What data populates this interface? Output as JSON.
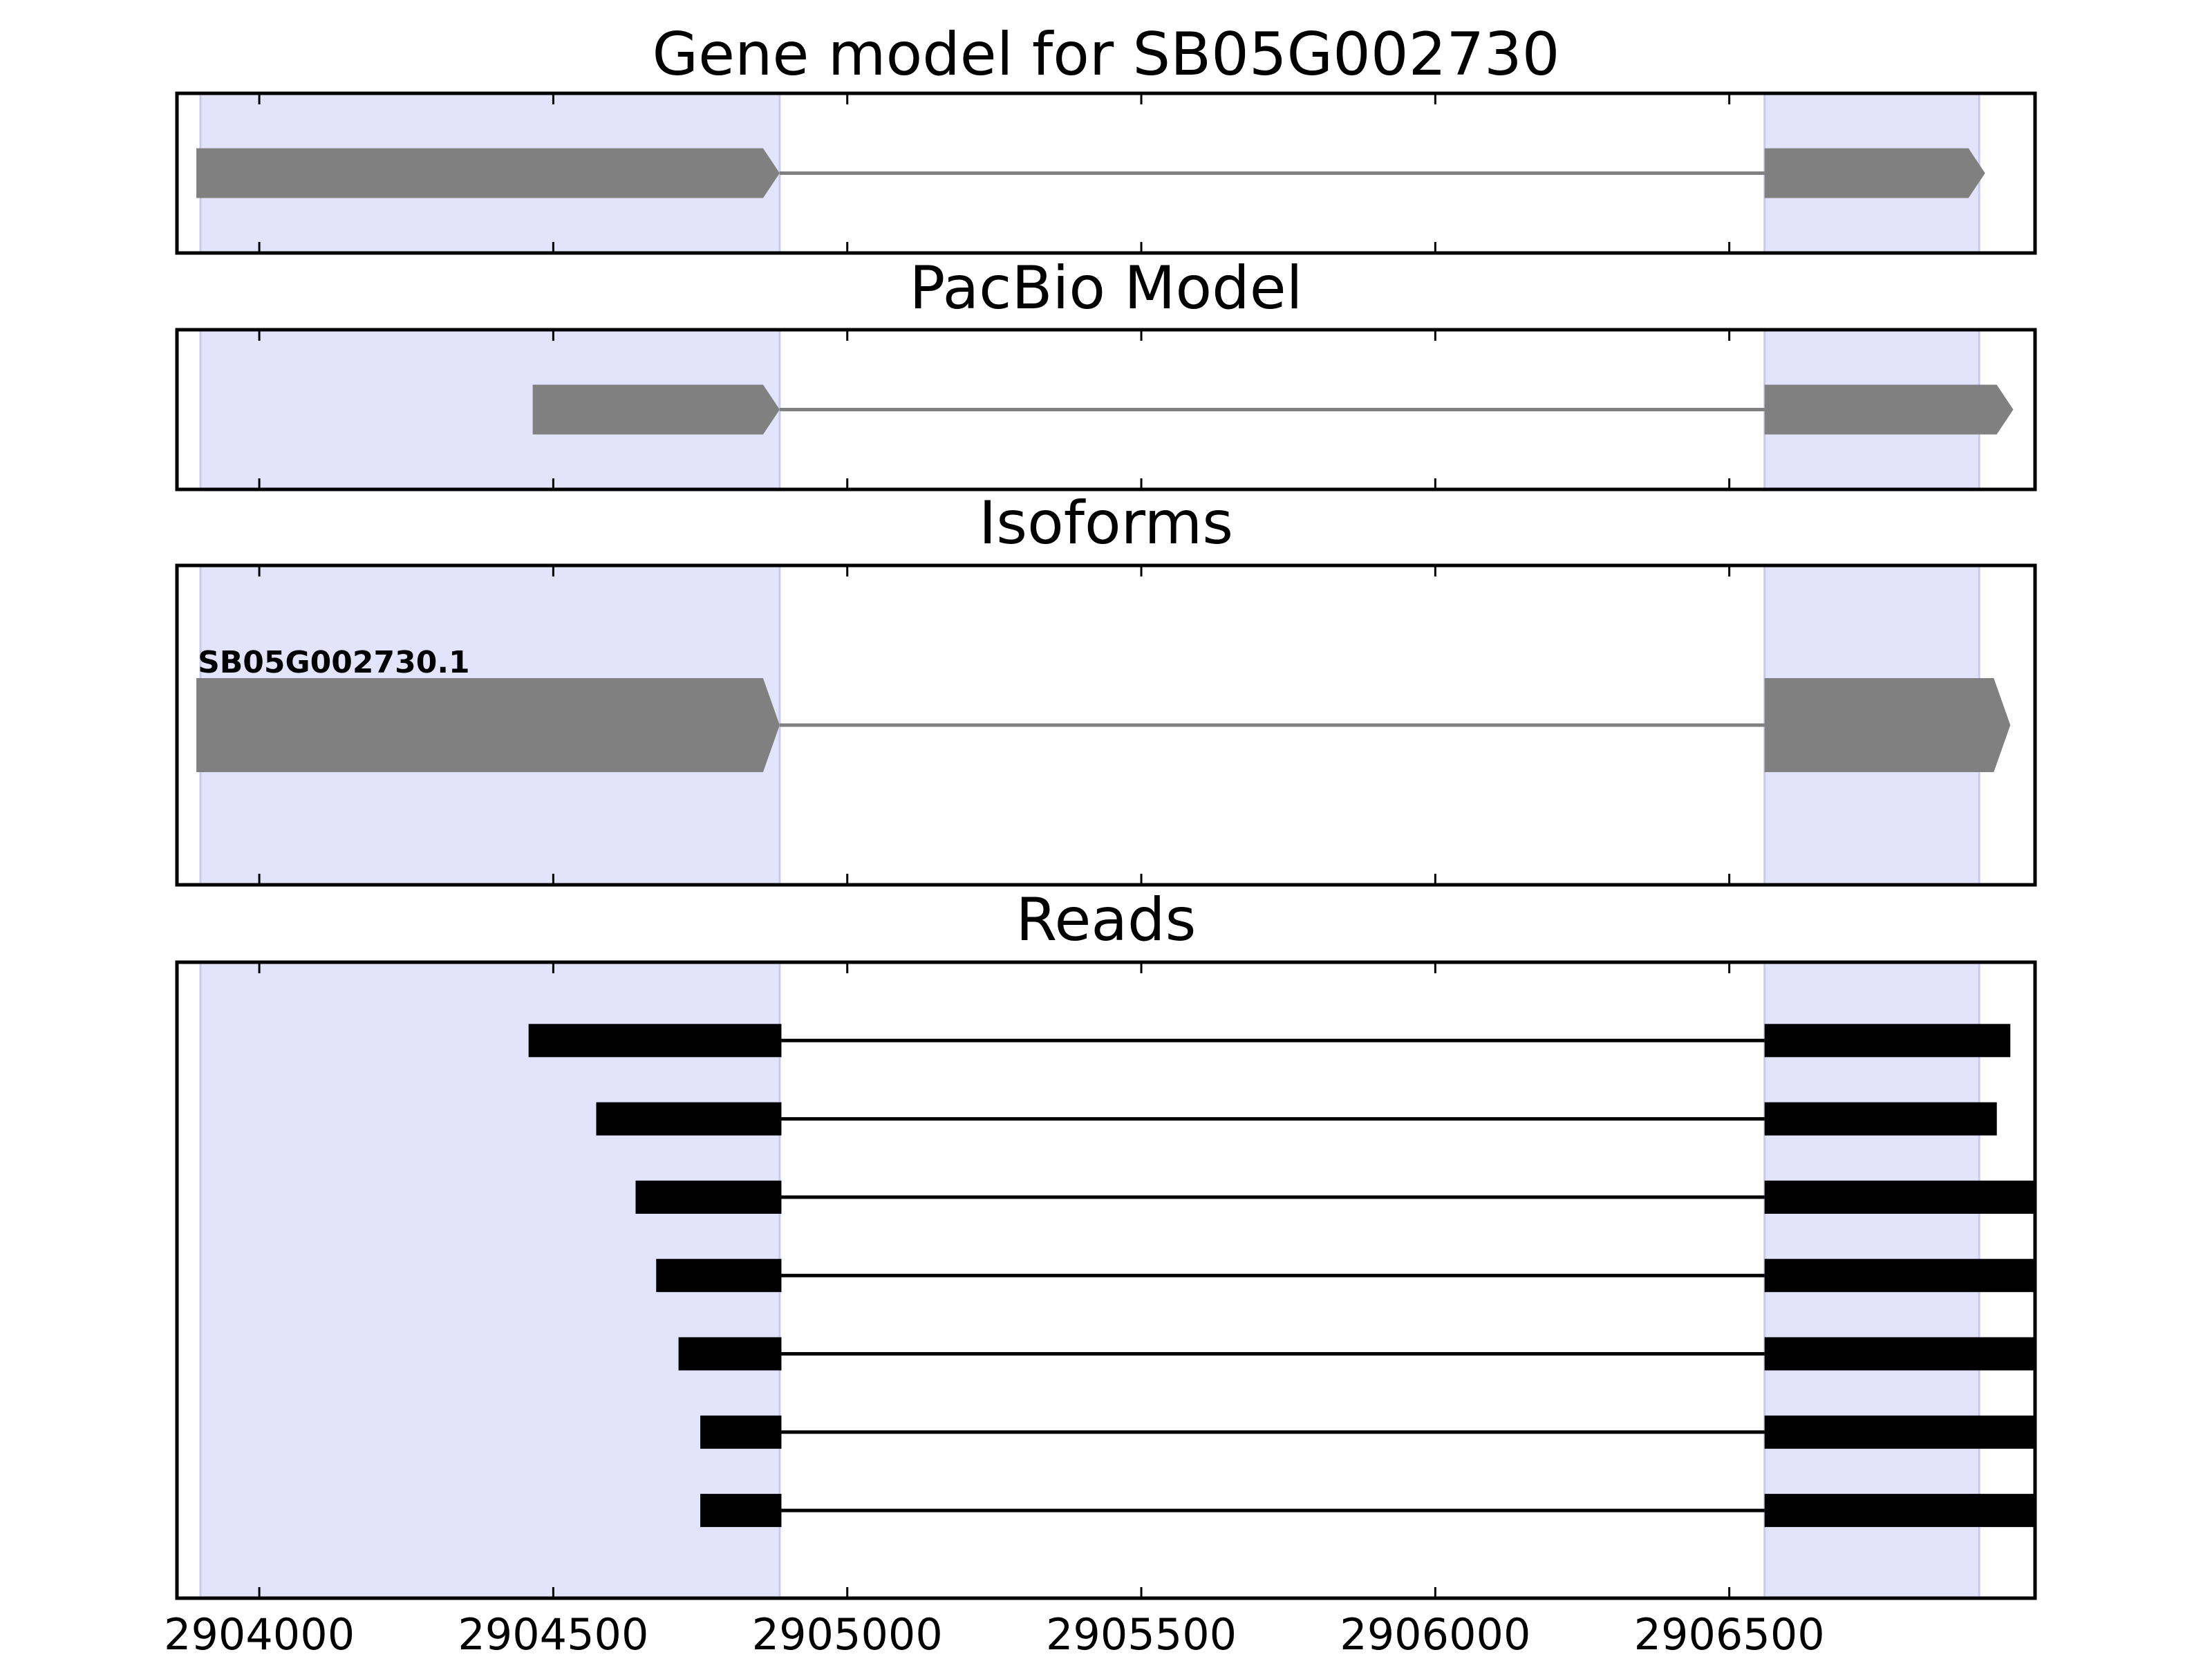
{
  "chart_data": {
    "type": "gene-structure",
    "colors": {
      "highlight": "#e3e3fc",
      "highlight_edge": "#c9c9f2",
      "model": "#808080",
      "intron": "#808080",
      "read": "#000000",
      "read_intron": "#000000",
      "frame": "#000000"
    },
    "xlim": [
      2903860,
      2907020
    ],
    "xticks": [
      2904000,
      2904500,
      2905000,
      2905500,
      2906000,
      2906500
    ],
    "xtick_labels": [
      "2904000",
      "2904500",
      "2905000",
      "2905500",
      "2906000",
      "2906500"
    ],
    "highlight_regions": [
      [
        2903900,
        2904885
      ],
      [
        2906560,
        2906925
      ]
    ],
    "panels": [
      {
        "title": "Gene model for SB05G002730",
        "kind": "model",
        "strand": "+",
        "exons": [
          [
            2903893,
            2904885
          ],
          [
            2906560,
            2906935
          ]
        ],
        "introns": [
          [
            2904885,
            2906560
          ]
        ]
      },
      {
        "title": "PacBio Model",
        "kind": "model",
        "strand": "+",
        "exons": [
          [
            2904465,
            2904885
          ],
          [
            2906560,
            2906983
          ]
        ],
        "introns": [
          [
            2904885,
            2906560
          ]
        ]
      },
      {
        "title": "Isoforms",
        "kind": "isoforms",
        "isoforms": [
          {
            "name": "SB05G002730.1",
            "strand": "+",
            "exons": [
              [
                2903893,
                2904885
              ],
              [
                2906560,
                2906978
              ]
            ],
            "introns": [
              [
                2904885,
                2906560
              ]
            ]
          }
        ]
      },
      {
        "title": "Reads",
        "kind": "reads",
        "reads": [
          {
            "exons": [
              [
                2904458,
                2904888
              ],
              [
                2906560,
                2906978
              ]
            ]
          },
          {
            "exons": [
              [
                2904573,
                2904888
              ],
              [
                2906560,
                2906955
              ]
            ]
          },
          {
            "exons": [
              [
                2904640,
                2904888
              ],
              [
                2906560,
                2907020
              ]
            ]
          },
          {
            "exons": [
              [
                2904675,
                2904888
              ],
              [
                2906560,
                2907020
              ]
            ]
          },
          {
            "exons": [
              [
                2904713,
                2904888
              ],
              [
                2906560,
                2907020
              ]
            ]
          },
          {
            "exons": [
              [
                2904750,
                2904888
              ],
              [
                2906560,
                2907020
              ]
            ]
          },
          {
            "exons": [
              [
                2904750,
                2904888
              ],
              [
                2906560,
                2907020
              ]
            ]
          }
        ]
      }
    ]
  }
}
